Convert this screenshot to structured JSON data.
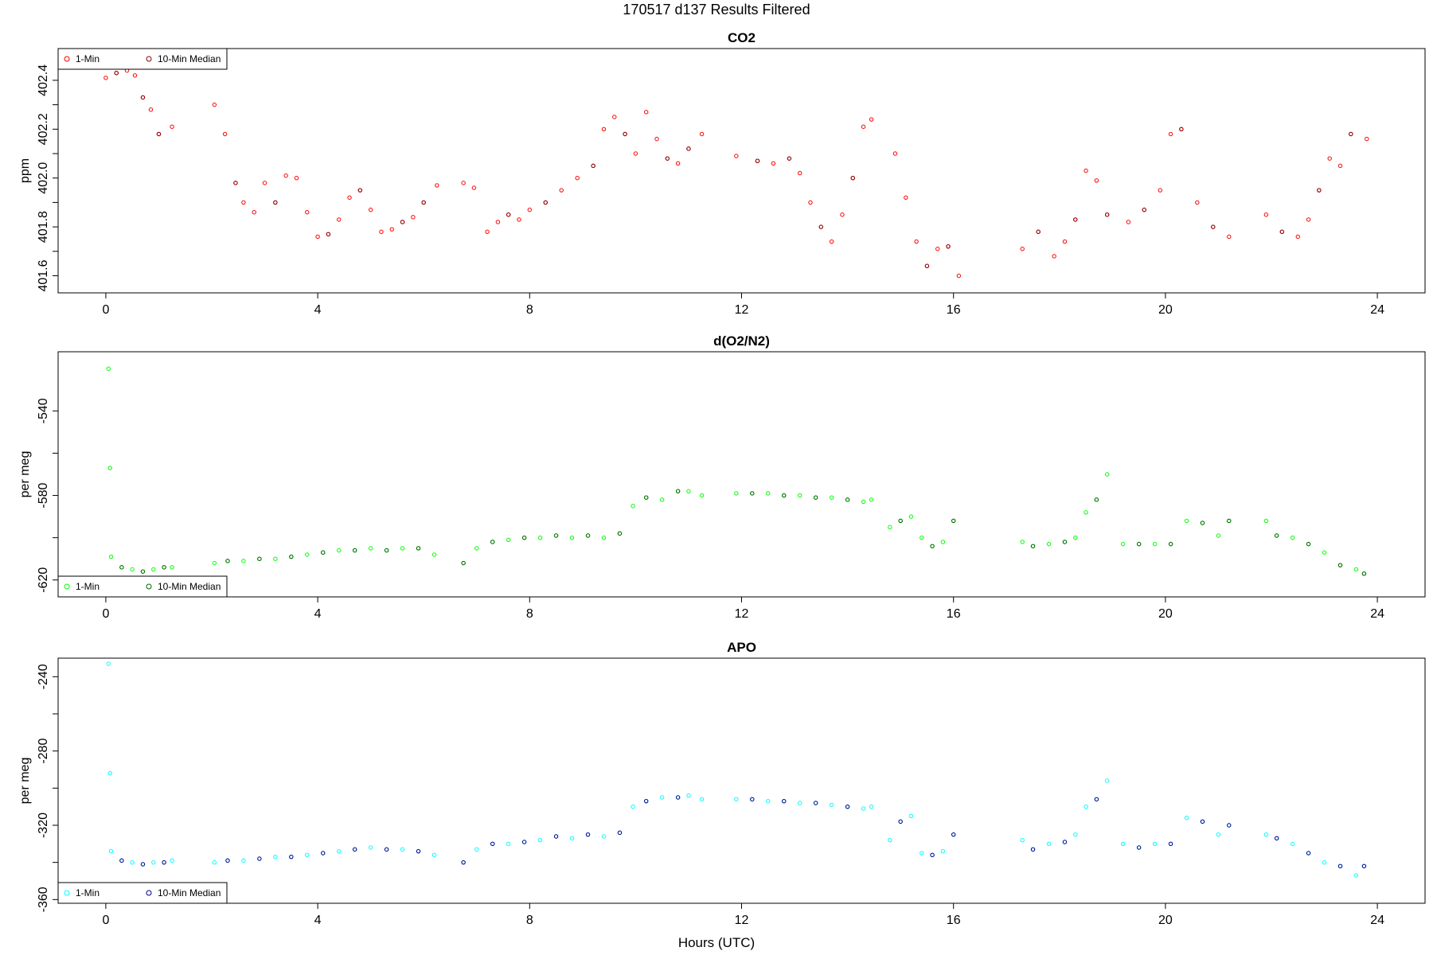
{
  "figure_title": "170517   d137   Results Filtered",
  "xlabel": "Hours (UTC)",
  "legend": {
    "one_min": "1-Min",
    "median": "10-Min Median"
  },
  "chart_data": [
    {
      "type": "scatter",
      "title": "CO2",
      "ylabel": "ppm",
      "xlim": [
        -0.9,
        24.9
      ],
      "ylim": [
        401.53,
        402.53
      ],
      "xticks": [
        0,
        4,
        8,
        12,
        16,
        20,
        24
      ],
      "yticks": [
        401.6,
        401.8,
        402.0,
        402.2,
        402.4
      ],
      "ytick_labels": [
        "401.6",
        "401.8",
        "402.0",
        "402.2",
        "402.4"
      ],
      "legend_position": "top-left",
      "colors": {
        "one_min": "#ff0000",
        "median": "#8b0000"
      },
      "series": [
        {
          "name": "1-Min",
          "x": [
            0.0,
            0.2,
            0.4,
            0.55,
            0.7,
            0.85,
            1.0,
            1.25,
            2.05,
            2.25,
            2.45,
            2.6,
            2.8,
            3.0,
            3.2,
            3.4,
            3.6,
            3.8,
            4.0,
            4.2,
            4.4,
            4.6,
            4.8,
            5.0,
            5.2,
            5.4,
            5.6,
            5.8,
            6.0,
            6.25,
            6.75,
            6.95,
            7.2,
            7.4,
            7.6,
            7.8,
            8.0,
            8.3,
            8.6,
            8.9,
            9.2,
            9.4,
            9.6,
            9.8,
            10.0,
            10.2,
            10.4,
            10.6,
            10.8,
            11.0,
            11.25,
            11.9,
            12.3,
            12.6,
            12.9,
            13.1,
            13.3,
            13.5,
            13.7,
            13.9,
            14.1,
            14.3,
            14.45,
            14.9,
            15.1,
            15.3,
            15.5,
            15.7,
            15.9,
            16.1,
            17.3,
            17.6,
            17.9,
            18.1,
            18.3,
            18.5,
            18.7,
            18.9,
            19.3,
            19.6,
            19.9,
            20.1,
            20.3,
            20.6,
            20.9,
            21.2,
            21.9,
            22.2,
            22.5,
            22.7,
            22.9,
            23.1,
            23.3,
            23.5,
            23.8
          ],
          "y": [
            402.41,
            402.43,
            402.44,
            402.42,
            402.33,
            402.28,
            402.18,
            402.21,
            402.3,
            402.18,
            401.98,
            401.9,
            401.86,
            401.98,
            401.9,
            402.01,
            402.0,
            401.86,
            401.76,
            401.77,
            401.83,
            401.92,
            401.95,
            401.87,
            401.78,
            401.79,
            401.82,
            401.84,
            401.9,
            401.97,
            401.98,
            401.96,
            401.78,
            401.82,
            401.85,
            401.83,
            401.87,
            401.9,
            401.95,
            402.0,
            402.05,
            402.2,
            402.25,
            402.18,
            402.1,
            402.27,
            402.16,
            402.08,
            402.06,
            402.12,
            402.18,
            402.09,
            402.07,
            402.06,
            402.08,
            402.02,
            401.9,
            401.8,
            401.74,
            401.85,
            402.0,
            402.21,
            402.24,
            402.1,
            401.92,
            401.74,
            401.64,
            401.71,
            401.72,
            401.6,
            401.71,
            401.78,
            401.68,
            401.74,
            401.83,
            402.03,
            401.99,
            401.85,
            401.82,
            401.87,
            401.95,
            402.18,
            402.2,
            401.9,
            401.8,
            401.76,
            401.85,
            401.78,
            401.76,
            401.83,
            401.95,
            402.08,
            402.05,
            402.18,
            402.16
          ]
        },
        {
          "name": "10-Min Median",
          "x": [
            0.2,
            0.7,
            1.0,
            2.45,
            3.2,
            4.2,
            4.8,
            5.6,
            6.0,
            7.6,
            8.3,
            9.2,
            9.8,
            10.6,
            11.0,
            12.3,
            12.9,
            13.5,
            14.1,
            15.5,
            15.9,
            17.6,
            18.3,
            18.9,
            19.6,
            20.3,
            20.9,
            22.2,
            22.9,
            23.5
          ],
          "y": [
            402.43,
            402.33,
            402.18,
            401.98,
            401.9,
            401.77,
            401.95,
            401.82,
            401.9,
            401.85,
            401.9,
            402.05,
            402.18,
            402.08,
            402.12,
            402.07,
            402.08,
            401.8,
            402.0,
            401.64,
            401.72,
            401.78,
            401.83,
            401.85,
            401.87,
            402.2,
            401.8,
            401.78,
            401.95,
            402.18
          ]
        }
      ]
    },
    {
      "type": "scatter",
      "title": "d(O2/N2)",
      "ylabel": "per meg",
      "xlim": [
        -0.9,
        24.9
      ],
      "ylim": [
        -628,
        -512
      ],
      "xticks": [
        0,
        4,
        8,
        12,
        16,
        20,
        24
      ],
      "yticks": [
        -620,
        -580,
        -540
      ],
      "ytick_labels": [
        "-620",
        "-580",
        "-540"
      ],
      "legend_position": "bottom-left",
      "colors": {
        "one_min": "#00ff00",
        "median": "#006400"
      },
      "series": [
        {
          "name": "1-Min",
          "x": [
            0.05,
            0.08,
            0.1,
            0.3,
            0.5,
            0.7,
            0.9,
            1.1,
            1.25,
            2.05,
            2.3,
            2.6,
            2.9,
            3.2,
            3.5,
            3.8,
            4.1,
            4.4,
            4.7,
            5.0,
            5.3,
            5.6,
            5.9,
            6.2,
            6.75,
            7.0,
            7.3,
            7.6,
            7.9,
            8.2,
            8.5,
            8.8,
            9.1,
            9.4,
            9.7,
            9.95,
            10.2,
            10.5,
            10.8,
            11.0,
            11.25,
            11.9,
            12.2,
            12.5,
            12.8,
            13.1,
            13.4,
            13.7,
            14.0,
            14.3,
            14.45,
            14.8,
            15.0,
            15.2,
            15.4,
            15.6,
            15.8,
            16.0,
            17.3,
            17.5,
            17.8,
            18.1,
            18.3,
            18.5,
            18.7,
            18.9,
            19.2,
            19.5,
            19.8,
            20.1,
            20.4,
            20.7,
            21.0,
            21.2,
            21.9,
            22.1,
            22.4,
            22.7,
            23.0,
            23.3,
            23.6,
            23.75
          ],
          "y": [
            -520,
            -567,
            -609,
            -614,
            -615,
            -616,
            -615,
            -614,
            -614,
            -612,
            -611,
            -611,
            -610,
            -610,
            -609,
            -608,
            -607,
            -606,
            -606,
            -605,
            -606,
            -605,
            -605,
            -608,
            -612,
            -605,
            -602,
            -601,
            -600,
            -600,
            -599,
            -600,
            -599,
            -600,
            -598,
            -585,
            -581,
            -582,
            -578,
            -578,
            -580,
            -579,
            -579,
            -579,
            -580,
            -580,
            -581,
            -581,
            -582,
            -583,
            -582,
            -595,
            -592,
            -590,
            -600,
            -604,
            -602,
            -592,
            -602,
            -604,
            -603,
            -602,
            -600,
            -588,
            -582,
            -570,
            -603,
            -603,
            -603,
            -603,
            -592,
            -593,
            -599,
            -592,
            -592,
            -599,
            -600,
            -603,
            -607,
            -613,
            -615,
            -617
          ]
        },
        {
          "name": "10-Min Median",
          "x": [
            0.3,
            0.7,
            1.1,
            2.3,
            2.9,
            3.5,
            4.1,
            4.7,
            5.3,
            5.9,
            6.75,
            7.3,
            7.9,
            8.5,
            9.1,
            9.7,
            10.2,
            10.8,
            12.2,
            12.8,
            13.4,
            14.0,
            15.0,
            15.6,
            16.0,
            17.5,
            18.1,
            18.7,
            19.5,
            20.1,
            20.7,
            21.2,
            22.1,
            22.7,
            23.3,
            23.75
          ],
          "y": [
            -614,
            -616,
            -614,
            -611,
            -610,
            -609,
            -607,
            -606,
            -606,
            -605,
            -612,
            -602,
            -600,
            -599,
            -599,
            -598,
            -581,
            -578,
            -579,
            -580,
            -581,
            -582,
            -592,
            -604,
            -592,
            -604,
            -602,
            -582,
            -603,
            -603,
            -593,
            -592,
            -599,
            -603,
            -613,
            -617
          ]
        }
      ]
    },
    {
      "type": "scatter",
      "title": "APO",
      "ylabel": "per meg",
      "xlim": [
        -0.9,
        24.9
      ],
      "ylim": [
        -362,
        -230
      ],
      "xticks": [
        0,
        4,
        8,
        12,
        16,
        20,
        24
      ],
      "yticks": [
        -360,
        -320,
        -280,
        -240
      ],
      "ytick_labels": [
        "-360",
        "-320",
        "-280",
        "-240"
      ],
      "legend_position": "bottom-left",
      "colors": {
        "one_min": "#00ffff",
        "median": "#00008b"
      },
      "series": [
        {
          "name": "1-Min",
          "x": [
            0.05,
            0.08,
            0.1,
            0.3,
            0.5,
            0.7,
            0.9,
            1.1,
            1.25,
            2.05,
            2.3,
            2.6,
            2.9,
            3.2,
            3.5,
            3.8,
            4.1,
            4.4,
            4.7,
            5.0,
            5.3,
            5.6,
            5.9,
            6.2,
            6.75,
            7.0,
            7.3,
            7.6,
            7.9,
            8.2,
            8.5,
            8.8,
            9.1,
            9.4,
            9.7,
            9.95,
            10.2,
            10.5,
            10.8,
            11.0,
            11.25,
            11.9,
            12.2,
            12.5,
            12.8,
            13.1,
            13.4,
            13.7,
            14.0,
            14.3,
            14.45,
            14.8,
            15.0,
            15.2,
            15.4,
            15.6,
            15.8,
            16.0,
            17.3,
            17.5,
            17.8,
            18.1,
            18.3,
            18.5,
            18.7,
            18.9,
            19.2,
            19.5,
            19.8,
            20.1,
            20.4,
            20.7,
            21.0,
            21.2,
            21.9,
            22.1,
            22.4,
            22.7,
            23.0,
            23.3,
            23.6,
            23.75
          ],
          "y": [
            -233,
            -292,
            -334,
            -339,
            -340,
            -341,
            -340,
            -340,
            -339,
            -340,
            -339,
            -339,
            -338,
            -337,
            -337,
            -336,
            -335,
            -334,
            -333,
            -332,
            -333,
            -333,
            -334,
            -336,
            -340,
            -333,
            -330,
            -330,
            -329,
            -328,
            -326,
            -327,
            -325,
            -326,
            -324,
            -310,
            -307,
            -305,
            -305,
            -304,
            -306,
            -306,
            -306,
            -307,
            -307,
            -308,
            -308,
            -309,
            -310,
            -311,
            -310,
            -328,
            -318,
            -315,
            -335,
            -336,
            -334,
            -325,
            -328,
            -333,
            -330,
            -329,
            -325,
            -310,
            -306,
            -296,
            -330,
            -332,
            -330,
            -330,
            -316,
            -318,
            -325,
            -320,
            -325,
            -327,
            -330,
            -335,
            -340,
            -342,
            -347,
            -342
          ]
        },
        {
          "name": "10-Min Median",
          "x": [
            0.3,
            0.7,
            1.1,
            2.3,
            2.9,
            3.5,
            4.1,
            4.7,
            5.3,
            5.9,
            6.75,
            7.3,
            7.9,
            8.5,
            9.1,
            9.7,
            10.2,
            10.8,
            12.2,
            12.8,
            13.4,
            14.0,
            15.0,
            15.6,
            16.0,
            17.5,
            18.1,
            18.7,
            19.5,
            20.1,
            20.7,
            21.2,
            22.1,
            22.7,
            23.3,
            23.75
          ],
          "y": [
            -339,
            -341,
            -340,
            -339,
            -338,
            -337,
            -335,
            -333,
            -333,
            -334,
            -340,
            -330,
            -329,
            -326,
            -325,
            -324,
            -307,
            -305,
            -306,
            -307,
            -308,
            -310,
            -318,
            -336,
            -325,
            -333,
            -329,
            -306,
            -332,
            -330,
            -318,
            -320,
            -327,
            -335,
            -342,
            -342
          ]
        }
      ]
    }
  ]
}
